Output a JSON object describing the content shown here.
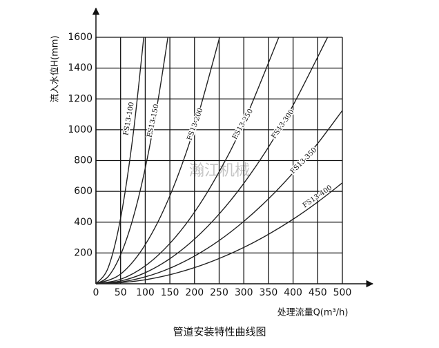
{
  "chart_data": {
    "type": "line",
    "title": "管道安装特性曲线图",
    "x_label": "处理流量Q(m³/h)",
    "y_label": "流入水位H(mm)",
    "watermark": "瀚江机械",
    "xlim": [
      0,
      500
    ],
    "ylim": [
      0,
      1600
    ],
    "xticks": [
      0,
      50,
      100,
      150,
      200,
      250,
      300,
      350,
      400,
      450,
      500
    ],
    "yticks": [
      200,
      400,
      600,
      800,
      1000,
      1200,
      1400,
      1600
    ],
    "grid": true,
    "color": "#222222",
    "series": [
      {
        "name": "FS13-100",
        "x": [
          0,
          25,
          50,
          75,
          97
        ],
        "values": [
          0,
          106,
          425,
          957,
          1600
        ]
      },
      {
        "name": "FS13-150",
        "x": [
          0,
          25,
          50,
          75,
          100,
          125,
          146
        ],
        "values": [
          0,
          47,
          188,
          422,
          750,
          1173,
          1600
        ]
      },
      {
        "name": "FS13-200",
        "x": [
          0,
          50,
          100,
          150,
          200,
          251
        ],
        "values": [
          0,
          63,
          254,
          571,
          1016,
          1600
        ]
      },
      {
        "name": "FS13-250",
        "x": [
          0,
          50,
          100,
          150,
          200,
          250,
          300,
          371
        ],
        "values": [
          0,
          29,
          116,
          262,
          465,
          727,
          1046,
          1600
        ]
      },
      {
        "name": "FS13-300",
        "x": [
          0,
          50,
          100,
          150,
          200,
          250,
          300,
          350,
          400,
          470
        ],
        "values": [
          0,
          18,
          72,
          163,
          290,
          453,
          652,
          887,
          1159,
          1600
        ]
      },
      {
        "name": "FS13-350",
        "x": [
          0,
          50,
          100,
          150,
          200,
          250,
          300,
          350,
          400,
          450,
          500
        ],
        "values": [
          0,
          11,
          45,
          101,
          180,
          281,
          405,
          551,
          720,
          911,
          1125
        ]
      },
      {
        "name": "FS13-400",
        "x": [
          0,
          50,
          100,
          150,
          200,
          250,
          300,
          350,
          400,
          450,
          500
        ],
        "values": [
          0,
          7,
          26,
          59,
          105,
          164,
          236,
          321,
          419,
          531,
          655
        ]
      }
    ]
  }
}
